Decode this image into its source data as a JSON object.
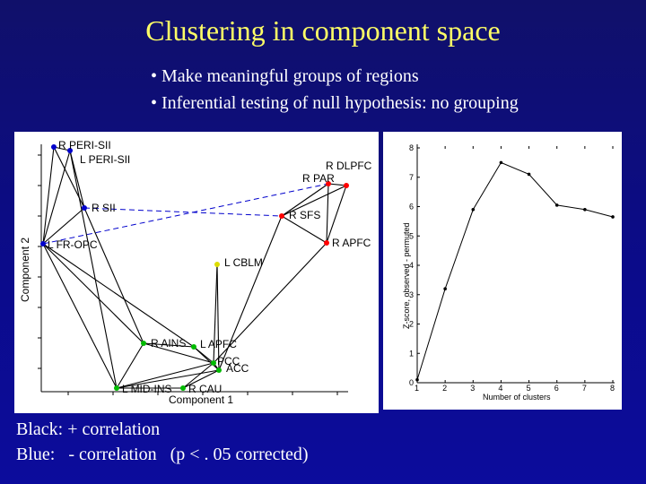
{
  "slide": {
    "title": "Clustering in component space",
    "bullets": [
      "• Make meaningful groups of regions",
      "• Inferential testing of null hypothesis: no grouping"
    ],
    "footer": [
      "Black: + correlation",
      "Blue:   - correlation   (p < . 05 corrected)"
    ]
  },
  "left_plot": {
    "xlabel": "Component 1",
    "ylabel": "Component 2",
    "regions": [
      {
        "id": "rperi",
        "label": "R PERI-SII",
        "color": "#0000cc"
      },
      {
        "id": "lperi",
        "label": "L PERI-SII",
        "color": "#0000cc"
      },
      {
        "id": "rsii",
        "label": "R SII",
        "color": "#0000cc"
      },
      {
        "id": "lfr",
        "label": "L FR-OPC",
        "color": "#0000cc"
      },
      {
        "id": "rdlpfc",
        "label": "R DLPFC",
        "color": "#ff0000"
      },
      {
        "id": "rpar",
        "label": "R PAR",
        "color": "#ff0000"
      },
      {
        "id": "rsfs",
        "label": "R SFS",
        "color": "#ff0000"
      },
      {
        "id": "rapfc",
        "label": "R APFC",
        "color": "#ff0000"
      },
      {
        "id": "lcblm",
        "label": "L CBLM",
        "color": "#dddd00"
      },
      {
        "id": "rains",
        "label": "R AINS",
        "color": "#00bb00"
      },
      {
        "id": "lapfc",
        "label": "L APFC",
        "color": "#00bb00"
      },
      {
        "id": "pcc",
        "label": "PCC",
        "color": "#00bb00"
      },
      {
        "id": "acc",
        "label": "ACC",
        "color": "#00bb00"
      },
      {
        "id": "lmidins",
        "label": "L MID-INS",
        "color": "#00bb00"
      },
      {
        "id": "rcau",
        "label": "R CAU",
        "color": "#00bb00"
      }
    ]
  },
  "chart_data": {
    "type": "line",
    "xlabel": "Number of clusters",
    "ylabel": "Z-score, observed - permuted",
    "x_ticks": [
      1,
      2,
      3,
      4,
      5,
      6,
      7,
      8
    ],
    "y_ticks": [
      0,
      1,
      2,
      3,
      4,
      5,
      6,
      7,
      8
    ],
    "xlim": [
      1,
      8
    ],
    "ylim": [
      0,
      8
    ],
    "x": [
      1,
      2,
      3,
      4,
      5,
      6,
      7,
      8
    ],
    "values": [
      0.1,
      3.2,
      5.9,
      7.5,
      7.1,
      6.05,
      5.9,
      5.65
    ]
  }
}
